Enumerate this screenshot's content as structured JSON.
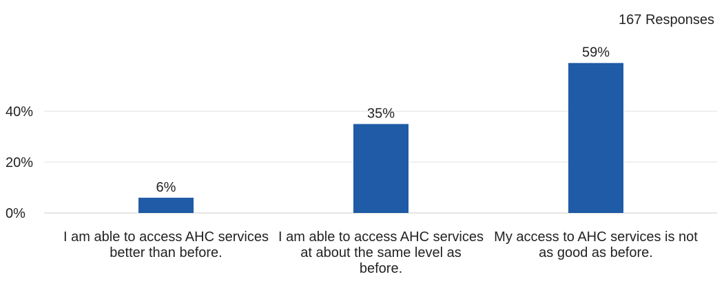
{
  "responses_label": "167 Responses",
  "colors": {
    "bar": "#1f5ba6",
    "grid": "#e0e0e0",
    "text": "#222222"
  },
  "chart_data": {
    "type": "bar",
    "title": "",
    "xlabel": "",
    "ylabel": "",
    "ylim": [
      0,
      65
    ],
    "yticks": [
      0,
      20,
      40
    ],
    "ytick_labels": [
      "0%",
      "20%",
      "40%"
    ],
    "categories": [
      "I am able to access AHC services better than before.",
      "I am able to access AHC services at about the same level as before.",
      "My access to AHC services is not as good as before."
    ],
    "values": [
      6,
      35,
      59
    ],
    "value_labels": [
      "6%",
      "35%",
      "59%"
    ],
    "grid": true
  }
}
